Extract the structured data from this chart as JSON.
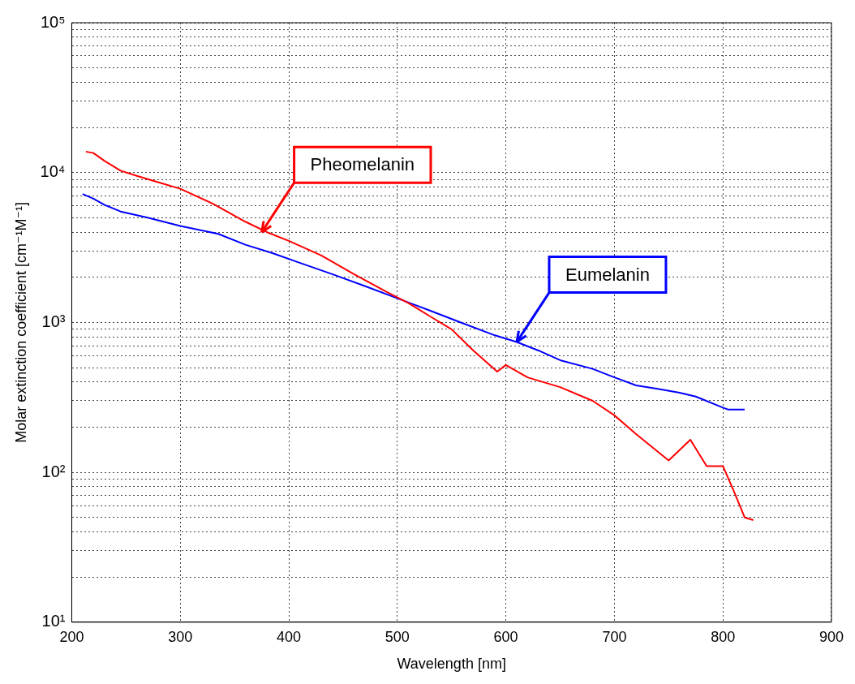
{
  "chart_data": {
    "type": "line",
    "xlabel": "Wavelength [nm]",
    "ylabel": "Molar extinction coefficient [cm⁻¹M⁻¹]",
    "log": "y",
    "grid": true,
    "marker": "none",
    "line_style": "solid",
    "xlim": [
      200,
      900
    ],
    "xticks": [
      200,
      300,
      400,
      500,
      600,
      700,
      800,
      900
    ],
    "ylim": [
      10,
      100000
    ],
    "yticks": [
      {
        "value": 10,
        "label": "10¹"
      },
      {
        "value": 20,
        "label": null
      },
      {
        "value": 30,
        "label": null
      },
      {
        "value": 40,
        "label": null
      },
      {
        "value": 50,
        "label": null
      },
      {
        "value": 60,
        "label": null
      },
      {
        "value": 70,
        "label": null
      },
      {
        "value": 80,
        "label": null
      },
      {
        "value": 90,
        "label": null
      },
      {
        "value": 100,
        "label": "10²"
      },
      {
        "value": 200,
        "label": null
      },
      {
        "value": 300,
        "label": null
      },
      {
        "value": 400,
        "label": null
      },
      {
        "value": 500,
        "label": null
      },
      {
        "value": 600,
        "label": null
      },
      {
        "value": 700,
        "label": null
      },
      {
        "value": 800,
        "label": null
      },
      {
        "value": 900,
        "label": null
      },
      {
        "value": 1000,
        "label": "10³"
      },
      {
        "value": 2000,
        "label": null
      },
      {
        "value": 3000,
        "label": null
      },
      {
        "value": 4000,
        "label": null
      },
      {
        "value": 5000,
        "label": null
      },
      {
        "value": 6000,
        "label": null
      },
      {
        "value": 7000,
        "label": null
      },
      {
        "value": 8000,
        "label": null
      },
      {
        "value": 9000,
        "label": null
      },
      {
        "value": 10000,
        "label": "10⁴"
      },
      {
        "value": 20000,
        "label": null
      },
      {
        "value": 30000,
        "label": null
      },
      {
        "value": 40000,
        "label": null
      },
      {
        "value": 50000,
        "label": null
      },
      {
        "value": 60000,
        "label": null
      },
      {
        "value": 70000,
        "label": null
      },
      {
        "value": 80000,
        "label": null
      },
      {
        "value": 90000,
        "label": null
      },
      {
        "value": 100000,
        "label": "10⁵"
      }
    ],
    "series": [
      {
        "color": "#ff0000",
        "x": [
          213,
          220,
          230,
          245,
          260,
          280,
          300,
          330,
          360,
          380,
          400,
          430,
          460,
          490,
          510,
          530,
          550,
          570,
          592,
          600,
          620,
          650,
          680,
          700,
          720,
          750,
          770,
          785,
          800,
          810,
          820,
          828
        ],
        "values": [
          13800,
          13500,
          12000,
          10300,
          9500,
          8600,
          7800,
          6200,
          4700,
          4000,
          3500,
          2800,
          2100,
          1600,
          1350,
          1100,
          900,
          650,
          470,
          520,
          430,
          370,
          300,
          240,
          180,
          120,
          165,
          110,
          110,
          75,
          50,
          48
        ]
      },
      {
        "color": "#0000ff",
        "x": [
          210,
          220,
          230,
          245,
          270,
          300,
          335,
          360,
          385,
          410,
          440,
          470,
          500,
          530,
          560,
          590,
          610,
          630,
          650,
          680,
          700,
          720,
          740,
          760,
          775,
          800,
          805,
          820
        ],
        "values": [
          7200,
          6700,
          6100,
          5500,
          5000,
          4400,
          3900,
          3300,
          2900,
          2500,
          2100,
          1750,
          1450,
          1200,
          990,
          820,
          740,
          650,
          560,
          490,
          430,
          380,
          360,
          340,
          320,
          270,
          262,
          262
        ]
      }
    ],
    "annotations": [
      {
        "text": "Pheomelanin",
        "x": 375,
        "y": 4000
      },
      {
        "text": "Eumelanin",
        "x": 610,
        "y": 740
      }
    ]
  }
}
